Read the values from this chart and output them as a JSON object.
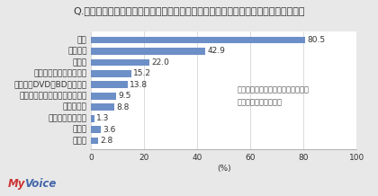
{
  "title": "Q.ワイヤレスイヤホン・ヘッドホン・ヘッドセットで、どのような音を聞きますか？",
  "categories": [
    "無回答",
    "その他",
    "カーナビからの音",
    "ゲームの音",
    "ビデオ通話・テレビ電話の音声",
    "テレビやDVD・BDなどの音",
    "電話（音声通話）の音声",
    "ラジオ",
    "動画の音",
    "音楽"
  ],
  "values": [
    2.8,
    3.6,
    1.3,
    8.8,
    9.5,
    13.8,
    15.2,
    22.0,
    42.9,
    80.5
  ],
  "bar_color": "#6D8FC7",
  "xlim": [
    0,
    100
  ],
  "xticks": [
    0,
    20,
    40,
    60,
    80,
    100
  ],
  "xlabel": "(%)",
  "annotation_text": "：ワイヤレスイヤホン・ヘッドホン\n・ヘッドセット利用者",
  "logo_text_my": "My",
  "logo_text_voice": "Voice",
  "title_fontsize": 8.0,
  "label_fontsize": 6.5,
  "value_fontsize": 6.5,
  "anno_fontsize": 6.0,
  "bg_color": "#e8e8e8",
  "plot_bg_color": "#ffffff"
}
